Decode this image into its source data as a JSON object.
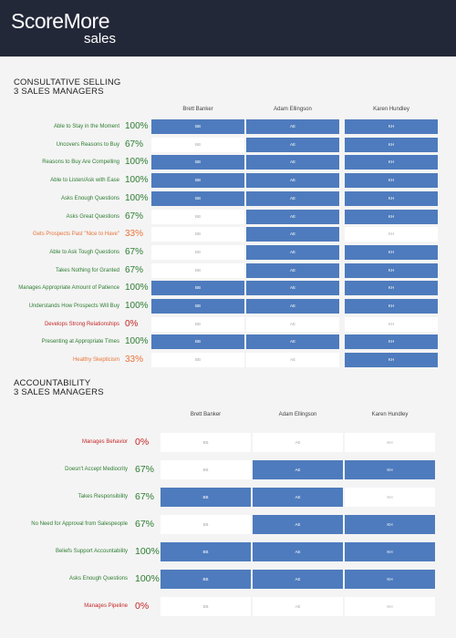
{
  "header": {
    "logo_main": "ScoreMore",
    "logo_sub": "sales"
  },
  "colors": {
    "header_bg": "#232839",
    "cell_on": "#4e7bbd",
    "cell_off": "#ffffff",
    "pct_green": "#2e7d32",
    "pct_orange": "#e8743b",
    "pct_red": "#c62828"
  },
  "consultative": {
    "title_line1": "CONSULTATIVE SELLING",
    "title_line2": "3 SALES MANAGERS",
    "managers": [
      "Brett Banker",
      "Adam Ellingson",
      "Karen Hundley"
    ],
    "initials": [
      "BB",
      "AE",
      "KH"
    ],
    "rows": [
      {
        "label": "Able to Stay in the Moment",
        "pct": "100%",
        "level": "green",
        "cells": [
          true,
          true,
          true
        ]
      },
      {
        "label": "Uncovers Reasons to Buy",
        "pct": "67%",
        "level": "green",
        "cells": [
          false,
          true,
          true
        ]
      },
      {
        "label": "Reasons to Buy Are Compelling",
        "pct": "100%",
        "level": "green",
        "cells": [
          true,
          true,
          true
        ]
      },
      {
        "label": "Able to Listen/Ask with Ease",
        "pct": "100%",
        "level": "green",
        "cells": [
          true,
          true,
          true
        ]
      },
      {
        "label": "Asks Enough Questions",
        "pct": "100%",
        "level": "green",
        "cells": [
          true,
          true,
          true
        ]
      },
      {
        "label": "Asks Great Questions",
        "pct": "67%",
        "level": "green",
        "cells": [
          false,
          true,
          true
        ]
      },
      {
        "label": "Gets Prospects Past \"Nice to Have\"",
        "pct": "33%",
        "level": "orange",
        "cells": [
          false,
          true,
          false
        ]
      },
      {
        "label": "Able to Ask Tough Questions",
        "pct": "67%",
        "level": "green",
        "cells": [
          false,
          true,
          true
        ]
      },
      {
        "label": "Takes Nothing for Granted",
        "pct": "67%",
        "level": "green",
        "cells": [
          false,
          true,
          true
        ]
      },
      {
        "label": "Manages Appropriate Amount of Patience",
        "pct": "100%",
        "level": "green",
        "cells": [
          true,
          true,
          true
        ]
      },
      {
        "label": "Understands How Prospects Will Buy",
        "pct": "100%",
        "level": "green",
        "cells": [
          true,
          true,
          true
        ]
      },
      {
        "label": "Develops Strong Relationships",
        "pct": "0%",
        "level": "red",
        "cells": [
          false,
          false,
          false
        ]
      },
      {
        "label": "Presenting at Appropriate Times",
        "pct": "100%",
        "level": "green",
        "cells": [
          true,
          true,
          true
        ]
      },
      {
        "label": "Healthy Skepticism",
        "pct": "33%",
        "level": "orange",
        "cells": [
          false,
          false,
          true
        ]
      }
    ]
  },
  "accountability": {
    "title_line1": "ACCOUNTABILITY",
    "title_line2": "3 SALES MANAGERS",
    "managers": [
      "Brett Banker",
      "Adam Ellingson",
      "Karen Hundley"
    ],
    "initials": [
      "BB",
      "AE",
      "KH"
    ],
    "rows": [
      {
        "label": "Manages Behavior",
        "pct": "0%",
        "level": "red",
        "cells": [
          false,
          false,
          false
        ]
      },
      {
        "label": "Doesn't Accept Mediocrity",
        "pct": "67%",
        "level": "green",
        "cells": [
          false,
          true,
          true
        ]
      },
      {
        "label": "Takes Responsibility",
        "pct": "67%",
        "level": "green",
        "cells": [
          true,
          true,
          false
        ]
      },
      {
        "label": "No Need for Approval from Salespeople",
        "pct": "67%",
        "level": "green",
        "cells": [
          false,
          true,
          true
        ]
      },
      {
        "label": "Beliefs Support Accountability",
        "pct": "100%",
        "level": "green",
        "cells": [
          true,
          true,
          true
        ]
      },
      {
        "label": "Asks Enough Questions",
        "pct": "100%",
        "level": "green",
        "cells": [
          true,
          true,
          true
        ]
      },
      {
        "label": "Manages Pipeline",
        "pct": "0%",
        "level": "red",
        "cells": [
          false,
          false,
          false
        ]
      }
    ]
  }
}
